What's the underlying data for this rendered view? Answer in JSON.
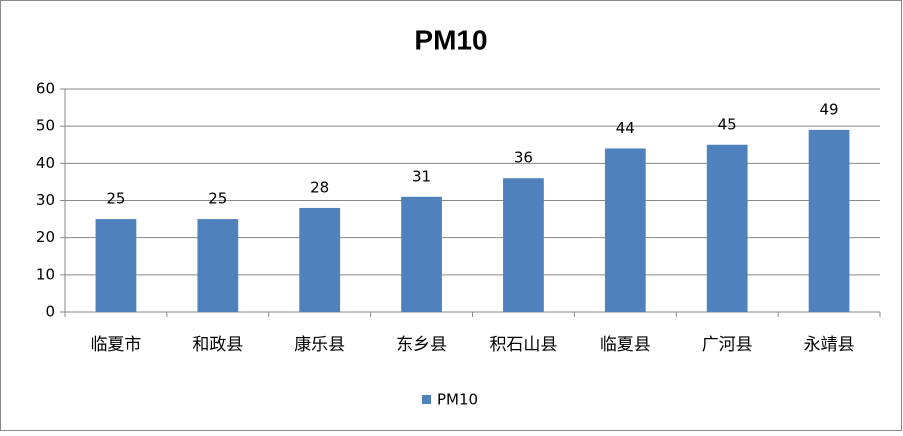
{
  "chart_data": {
    "type": "bar",
    "title": "PM10",
    "categories": [
      "临夏市",
      "和政县",
      "康乐县",
      "东乡县",
      "积石山县",
      "临夏县",
      "广河县",
      "永靖县"
    ],
    "series": [
      {
        "name": "PM10",
        "color": "#4f81bd",
        "values": [
          25,
          25,
          28,
          31,
          36,
          44,
          45,
          49
        ]
      }
    ],
    "ylim": [
      0,
      60
    ],
    "yticks": [
      0,
      10,
      20,
      30,
      40,
      50,
      60
    ],
    "grid": true,
    "legend": "bottom"
  }
}
